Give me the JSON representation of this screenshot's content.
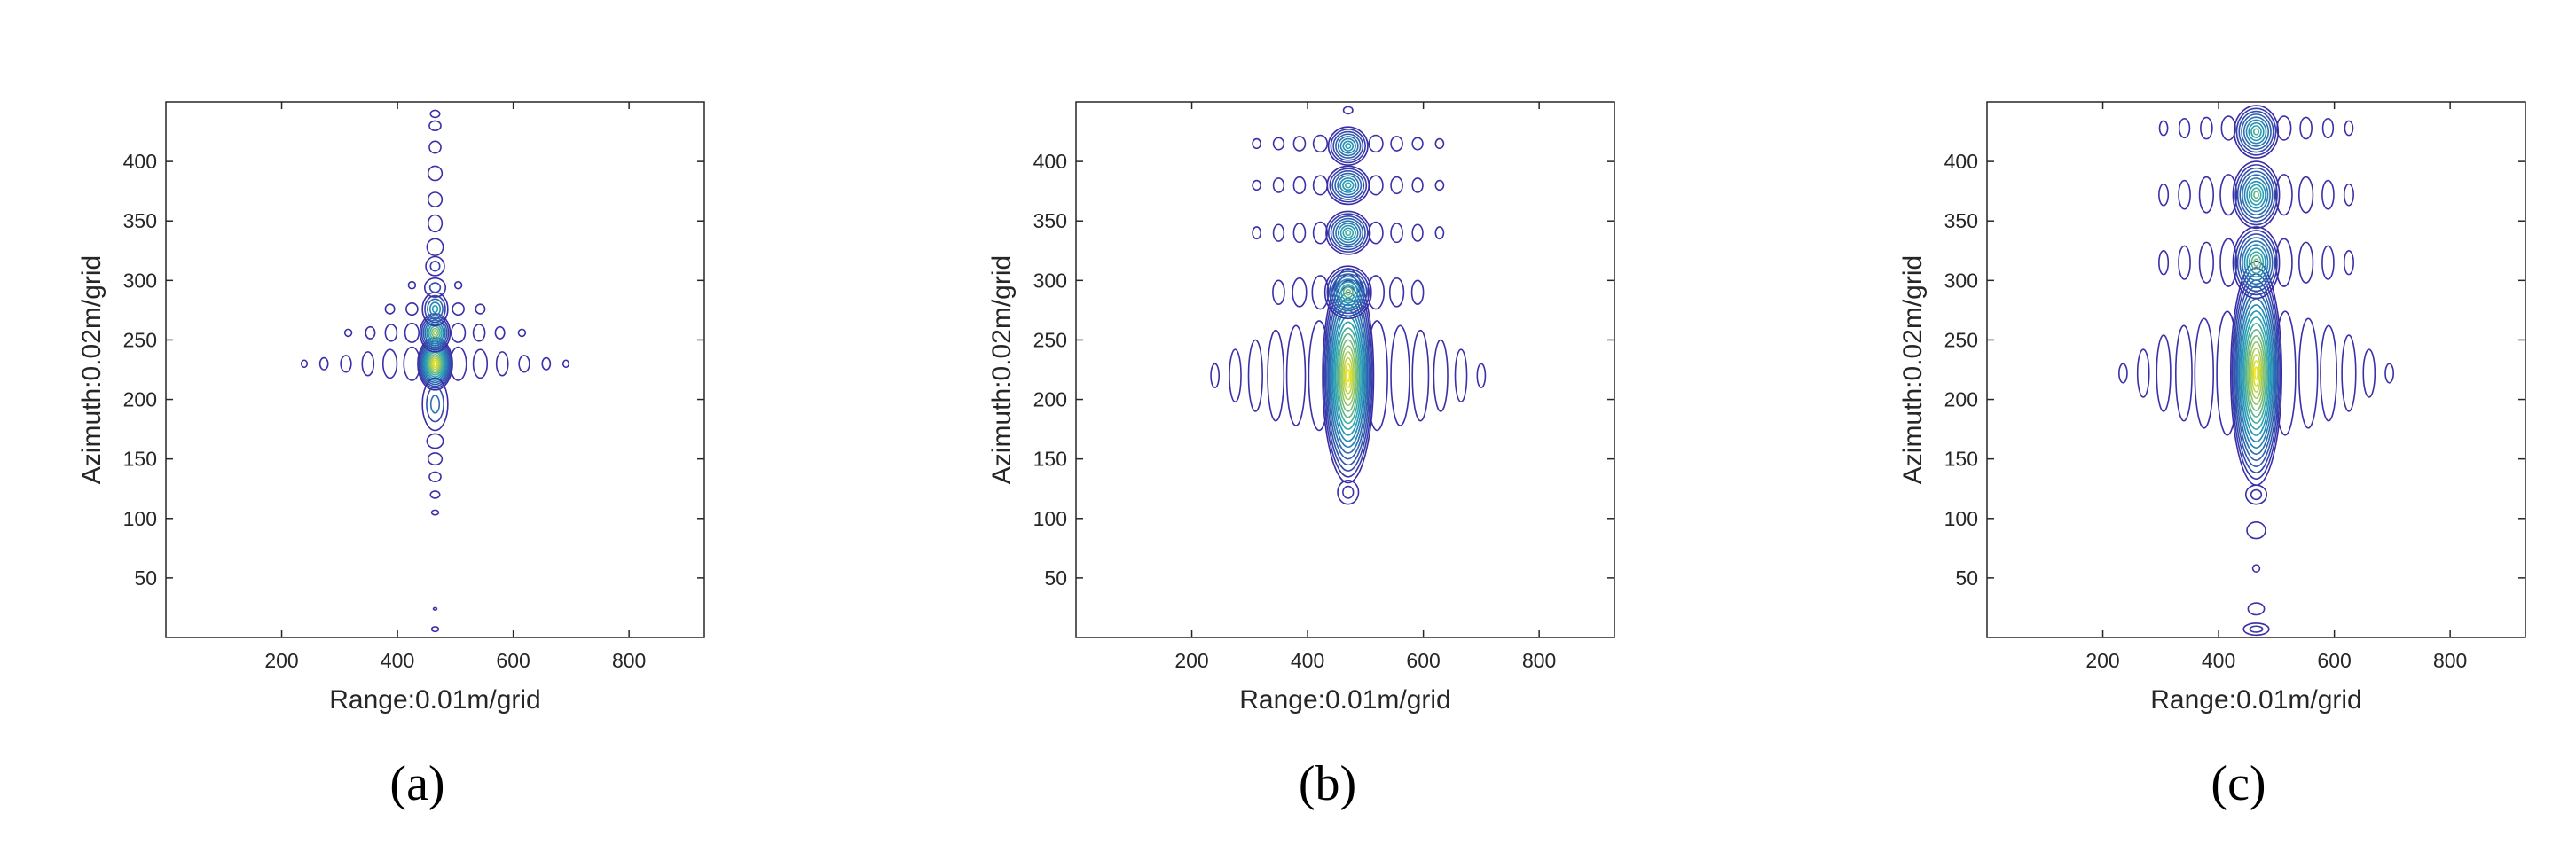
{
  "colors": {
    "frame": "#262626",
    "contour_low": "#3b2ba8",
    "contour_mid": "#21a0b8",
    "contour_high": "#f2e51f"
  },
  "chart_data": [
    {
      "type": "contour",
      "panel_label": "(a)",
      "xlabel": "Range:0.01m/grid",
      "ylabel": "Azimuth:0.02m/grid",
      "xlim": [
        0,
        930
      ],
      "ylim": [
        0,
        450
      ],
      "xticks": [
        "200",
        "400",
        "600",
        "800"
      ],
      "yticks": [
        "50",
        "100",
        "150",
        "200",
        "250",
        "300",
        "350",
        "400"
      ],
      "grid": false,
      "colormap": "parula",
      "peak": {
        "range": 465,
        "azimuth": 230
      },
      "lobes": [
        {
          "y": 230,
          "h": 22,
          "w": 30,
          "intensity": 1.0,
          "n": 14
        },
        {
          "y": 256,
          "h": 16,
          "w": 26,
          "intensity": 0.8,
          "n": 9
        },
        {
          "y": 276,
          "h": 14,
          "w": 22,
          "intensity": 0.5,
          "n": 5
        },
        {
          "y": 196,
          "h": 22,
          "w": 22,
          "intensity": 0.3,
          "n": 3
        },
        {
          "y": 294,
          "h": 8,
          "w": 18,
          "intensity": 0.15,
          "n": 2
        },
        {
          "y": 312,
          "h": 8,
          "w": 16,
          "intensity": 0.1,
          "n": 2
        },
        {
          "y": 328,
          "h": 7,
          "w": 14,
          "intensity": 0.05,
          "n": 1
        },
        {
          "y": 348,
          "h": 7,
          "w": 12,
          "intensity": 0.05,
          "n": 1
        },
        {
          "y": 368,
          "h": 6,
          "w": 12,
          "intensity": 0.05,
          "n": 1
        },
        {
          "y": 390,
          "h": 6,
          "w": 12,
          "intensity": 0.05,
          "n": 1
        },
        {
          "y": 412,
          "h": 5,
          "w": 10,
          "intensity": 0.05,
          "n": 1
        },
        {
          "y": 430,
          "h": 4,
          "w": 10,
          "intensity": 0.05,
          "n": 1
        },
        {
          "y": 440,
          "h": 3,
          "w": 8,
          "intensity": 0.05,
          "n": 1
        },
        {
          "y": 165,
          "h": 6,
          "w": 14,
          "intensity": 0.05,
          "n": 1
        },
        {
          "y": 150,
          "h": 5,
          "w": 12,
          "intensity": 0.05,
          "n": 1
        },
        {
          "y": 135,
          "h": 4,
          "w": 10,
          "intensity": 0.05,
          "n": 1
        },
        {
          "y": 120,
          "h": 3,
          "w": 8,
          "intensity": 0.05,
          "n": 1
        },
        {
          "y": 105,
          "h": 2,
          "w": 6,
          "intensity": 0.05,
          "n": 1
        },
        {
          "y": 24,
          "h": 1,
          "w": 3,
          "intensity": 0.05,
          "n": 1
        },
        {
          "y": 7,
          "h": 2,
          "w": 6,
          "intensity": 0.05,
          "n": 1
        }
      ],
      "side_lobes": [
        {
          "y": 230,
          "offsets": [
            40,
            78,
            116,
            154,
            192,
            226
          ],
          "h": [
            14,
            12,
            10,
            7,
            5,
            3
          ],
          "w": [
            14,
            12,
            10,
            9,
            7,
            5
          ]
        },
        {
          "y": 256,
          "offsets": [
            40,
            76,
            112,
            150
          ],
          "h": [
            8,
            7,
            5,
            3
          ],
          "w": [
            12,
            10,
            8,
            6
          ]
        },
        {
          "y": 276,
          "offsets": [
            40,
            78
          ],
          "h": [
            5,
            4
          ],
          "w": [
            10,
            8
          ]
        },
        {
          "y": 296,
          "offsets": [
            40
          ],
          "h": [
            3
          ],
          "w": [
            6
          ]
        }
      ]
    },
    {
      "type": "contour",
      "panel_label": "(b)",
      "xlabel": "Range:0.01m/grid",
      "ylabel": "Azimuth:0.02m/grid",
      "xlim": [
        0,
        930
      ],
      "ylim": [
        0,
        450
      ],
      "xticks": [
        "200",
        "400",
        "600",
        "800"
      ],
      "yticks": [
        "50",
        "100",
        "150",
        "200",
        "250",
        "300",
        "350",
        "400"
      ],
      "grid": false,
      "colormap": "parula",
      "peak": {
        "range": 470,
        "azimuth": 220
      },
      "lobes": [
        {
          "y": 220,
          "h": 90,
          "w": 44,
          "intensity": 1.0,
          "n": 18
        },
        {
          "y": 290,
          "h": 22,
          "w": 40,
          "intensity": 0.7,
          "n": 10
        },
        {
          "y": 340,
          "h": 18,
          "w": 38,
          "intensity": 0.6,
          "n": 9
        },
        {
          "y": 380,
          "h": 16,
          "w": 36,
          "intensity": 0.55,
          "n": 8
        },
        {
          "y": 413,
          "h": 16,
          "w": 34,
          "intensity": 0.5,
          "n": 8
        },
        {
          "y": 443,
          "h": 3,
          "w": 8,
          "intensity": 0.05,
          "n": 1
        },
        {
          "y": 122,
          "h": 10,
          "w": 18,
          "intensity": 0.05,
          "n": 2
        }
      ],
      "side_lobes": [
        {
          "y": 220,
          "offsets": [
            50,
            90,
            125,
            160,
            195,
            230
          ],
          "h": [
            46,
            42,
            38,
            30,
            22,
            10
          ],
          "w": [
            18,
            16,
            14,
            12,
            10,
            7
          ]
        },
        {
          "y": 290,
          "offsets": [
            48,
            84,
            120
          ],
          "h": [
            14,
            12,
            10
          ],
          "w": [
            14,
            12,
            10
          ]
        },
        {
          "y": 340,
          "offsets": [
            48,
            84,
            120,
            158
          ],
          "h": [
            9,
            8,
            7,
            5
          ],
          "w": [
            12,
            10,
            9,
            7
          ]
        },
        {
          "y": 380,
          "offsets": [
            48,
            84,
            120,
            158
          ],
          "h": [
            8,
            7,
            6,
            4
          ],
          "w": [
            12,
            10,
            9,
            7
          ]
        },
        {
          "y": 415,
          "offsets": [
            48,
            84,
            120,
            158
          ],
          "h": [
            7,
            6,
            5,
            4
          ],
          "w": [
            12,
            10,
            9,
            7
          ]
        }
      ]
    },
    {
      "type": "contour",
      "panel_label": "(c)",
      "xlabel": "Range:0.01m/grid",
      "ylabel": "Azimuth:0.02m/grid",
      "xlim": [
        0,
        930
      ],
      "ylim": [
        0,
        450
      ],
      "xticks": [
        "200",
        "400",
        "600",
        "800"
      ],
      "yticks": [
        "50",
        "100",
        "150",
        "200",
        "250",
        "300",
        "350",
        "400"
      ],
      "grid": false,
      "colormap": "parula",
      "peak": {
        "range": 465,
        "azimuth": 220
      },
      "lobes": [
        {
          "y": 222,
          "h": 94,
          "w": 44,
          "intensity": 1.0,
          "n": 18
        },
        {
          "y": 315,
          "h": 30,
          "w": 40,
          "intensity": 0.7,
          "n": 10
        },
        {
          "y": 372,
          "h": 28,
          "w": 40,
          "intensity": 0.65,
          "n": 10
        },
        {
          "y": 425,
          "h": 22,
          "w": 38,
          "intensity": 0.6,
          "n": 9
        },
        {
          "y": 120,
          "h": 8,
          "w": 18,
          "intensity": 0.05,
          "n": 2
        },
        {
          "y": 90,
          "h": 7,
          "w": 16,
          "intensity": 0.05,
          "n": 1
        },
        {
          "y": 58,
          "h": 3,
          "w": 6,
          "intensity": 0.05,
          "n": 1
        },
        {
          "y": 24,
          "h": 5,
          "w": 14,
          "intensity": 0.05,
          "n": 1
        },
        {
          "y": 7,
          "h": 5,
          "w": 22,
          "intensity": 0.05,
          "n": 2
        }
      ],
      "side_lobes": [
        {
          "y": 222,
          "offsets": [
            50,
            90,
            125,
            160,
            195,
            230
          ],
          "h": [
            52,
            46,
            40,
            32,
            20,
            8
          ],
          "w": [
            18,
            16,
            14,
            12,
            10,
            7
          ]
        },
        {
          "y": 315,
          "offsets": [
            48,
            86,
            124,
            160
          ],
          "h": [
            20,
            17,
            14,
            10
          ],
          "w": [
            14,
            12,
            10,
            8
          ]
        },
        {
          "y": 372,
          "offsets": [
            48,
            86,
            124,
            160
          ],
          "h": [
            17,
            15,
            12,
            9
          ],
          "w": [
            14,
            12,
            10,
            8
          ]
        },
        {
          "y": 428,
          "offsets": [
            48,
            86,
            124,
            160
          ],
          "h": [
            10,
            9,
            8,
            6
          ],
          "w": [
            12,
            10,
            9,
            7
          ]
        }
      ]
    }
  ]
}
